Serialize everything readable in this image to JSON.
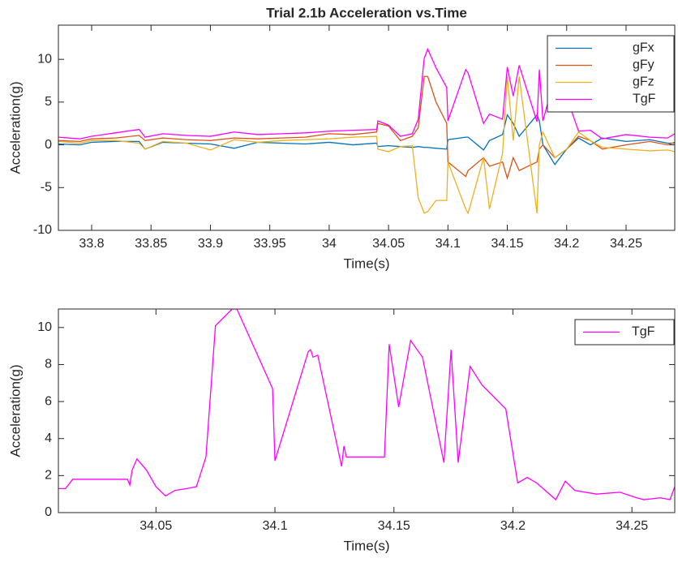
{
  "chart_data": [
    {
      "type": "line",
      "title": "Trial 2.1b Acceleration vs.Time",
      "xlabel": "Time(s)",
      "ylabel": "Acceleration(g)",
      "x": [
        33.772,
        33.79,
        33.8,
        33.82,
        33.84,
        33.845,
        33.86,
        33.88,
        33.9,
        33.92,
        33.94,
        33.96,
        33.98,
        34.0,
        34.02,
        34.04,
        34.041,
        34.05,
        34.06,
        34.07,
        34.075,
        34.08,
        34.083,
        34.09,
        34.099,
        34.1,
        34.115,
        34.117,
        34.13,
        34.135,
        34.146,
        34.15,
        34.155,
        34.16,
        34.175,
        34.177,
        34.18,
        34.19,
        34.2,
        34.21,
        34.22,
        34.23,
        34.25,
        34.27,
        34.285,
        34.291
      ],
      "series": [
        {
          "name": "gFx",
          "color": "#0072bd",
          "values": [
            0.1,
            0,
            0.3,
            0.4,
            0.4,
            -0.5,
            0.3,
            0.2,
            0.1,
            -0.4,
            0.3,
            0.2,
            0.1,
            0.3,
            0.0,
            0.2,
            -0.2,
            -0.1,
            -0.2,
            -0.3,
            -0.2,
            -0.3,
            -0.3,
            -0.4,
            -0.5,
            0.6,
            0.9,
            0.9,
            -0.6,
            0.5,
            1.2,
            3.5,
            2.5,
            1.0,
            3.5,
            2.8,
            0.0,
            -2.3,
            -0.5,
            0.8,
            0.0,
            0.8,
            0.4,
            0.6,
            0.2,
            0.2
          ]
        },
        {
          "name": "gFy",
          "color": "#d95319",
          "values": [
            0.5,
            0.4,
            0.7,
            0.8,
            1.1,
            0.5,
            0.8,
            0.6,
            0.5,
            0.8,
            0.7,
            0.8,
            0.9,
            1.3,
            1.2,
            1.5,
            2.5,
            2.2,
            0.5,
            1.0,
            2.0,
            8.0,
            8.0,
            5.0,
            2.5,
            -2.0,
            -3.7,
            -3.0,
            -1.5,
            -2.5,
            -2.0,
            -3.9,
            -1.5,
            -3.0,
            -2.0,
            -0.5,
            0.0,
            -1.5,
            -0.5,
            1.0,
            0.5,
            -0.5,
            0.0,
            0.4,
            0.0,
            0.3
          ]
        },
        {
          "name": "gFz",
          "color": "#edb120",
          "values": [
            0.4,
            0.2,
            0.5,
            0.5,
            0.2,
            -0.5,
            0.4,
            0.2,
            -0.6,
            0.6,
            0.3,
            0.5,
            0.6,
            0.7,
            0.9,
            1.0,
            -0.5,
            -0.8,
            -0.2,
            -0.1,
            -6.2,
            -8.0,
            -7.8,
            -6.5,
            -6.5,
            -2.0,
            -7.5,
            -8.0,
            -1.5,
            -7.5,
            -1.0,
            8.0,
            0.5,
            8.0,
            -8.0,
            0.0,
            1.5,
            -1.5,
            -0.5,
            1.5,
            0.5,
            -0.3,
            -0.5,
            -0.7,
            -0.6,
            -0.8
          ]
        },
        {
          "name": "TgF",
          "color": "#ff00ff",
          "values": [
            0.9,
            0.7,
            1.0,
            1.4,
            1.8,
            0.9,
            1.3,
            1.1,
            1.0,
            1.5,
            1.2,
            1.3,
            1.4,
            1.6,
            1.7,
            1.8,
            2.8,
            2.3,
            1.0,
            1.3,
            3.0,
            10.1,
            11.2,
            9.0,
            6.7,
            2.8,
            8.8,
            8.4,
            2.5,
            3.6,
            3.0,
            9.1,
            5.7,
            9.3,
            2.7,
            8.8,
            2.8,
            7.9,
            5.6,
            1.6,
            1.7,
            0.7,
            1.2,
            0.9,
            0.8,
            1.3
          ]
        }
      ],
      "xlim": [
        33.772,
        34.291
      ],
      "ylim": [
        -10,
        14
      ],
      "xticks": [
        33.8,
        33.85,
        33.9,
        33.95,
        34,
        34.05,
        34.1,
        34.15,
        34.2,
        34.25
      ],
      "yticks": [
        -10,
        -5,
        0,
        5,
        10
      ],
      "grid": false,
      "legend": "upper right"
    },
    {
      "type": "line",
      "xlabel": "Time(s)",
      "ylabel": "Acceleration(g)",
      "x": [
        34.009,
        34.012,
        34.015,
        34.038,
        34.039,
        34.04,
        34.042,
        34.046,
        34.05,
        34.054,
        34.058,
        34.063,
        34.067,
        34.071,
        34.075,
        34.082,
        34.084,
        34.099,
        34.1,
        34.114,
        34.115,
        34.116,
        34.118,
        34.128,
        34.129,
        34.13,
        34.146,
        34.148,
        34.152,
        34.157,
        34.162,
        34.171,
        34.174,
        34.177,
        34.182,
        34.187,
        34.197,
        34.202,
        34.206,
        34.21,
        34.218,
        34.222,
        34.226,
        34.235,
        34.245,
        34.252,
        34.255,
        34.262,
        34.266,
        34.268
      ],
      "series": [
        {
          "name": "TgF",
          "color": "#ff00ff",
          "values": [
            1.3,
            1.3,
            1.8,
            1.8,
            1.5,
            2.3,
            2.9,
            2.3,
            1.4,
            0.9,
            1.2,
            1.3,
            1.4,
            3.0,
            10.1,
            11.0,
            11.0,
            6.7,
            2.8,
            8.7,
            8.8,
            8.4,
            8.5,
            2.5,
            3.6,
            3.0,
            3.0,
            9.1,
            5.7,
            9.3,
            8.4,
            2.7,
            8.8,
            2.7,
            7.9,
            6.9,
            5.6,
            1.6,
            1.9,
            1.6,
            0.7,
            1.7,
            1.2,
            1.0,
            1.1,
            0.8,
            0.7,
            0.8,
            0.7,
            1.4
          ]
        }
      ],
      "xlim": [
        34.009,
        34.268
      ],
      "ylim": [
        0,
        11
      ],
      "xticks": [
        34.05,
        34.1,
        34.15,
        34.2,
        34.25
      ],
      "yticks": [
        0,
        2,
        4,
        6,
        8,
        10
      ],
      "grid": false,
      "legend": "upper right"
    }
  ]
}
